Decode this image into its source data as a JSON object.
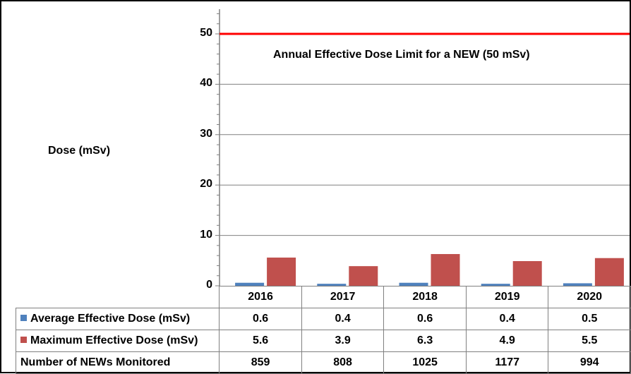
{
  "chart_data": {
    "type": "bar",
    "categories": [
      "2016",
      "2017",
      "2018",
      "2019",
      "2020"
    ],
    "series": [
      {
        "name": "Average Effective Dose (mSv)",
        "values": [
          0.6,
          0.4,
          0.6,
          0.4,
          0.5
        ],
        "color": "#4f81bd"
      },
      {
        "name": "Maximum Effective Dose (mSv)",
        "values": [
          5.6,
          3.9,
          6.3,
          4.9,
          5.5
        ],
        "color": "#c0504d"
      }
    ],
    "ylabel": "Dose (mSv)",
    "yticks": [
      "0",
      "10",
      "20",
      "30",
      "40",
      "50"
    ],
    "ylim": [
      0,
      55
    ],
    "grid": true,
    "reference_line": {
      "value": 50,
      "color": "#ff0000",
      "label": "Annual Effective Dose Limit for a NEW (50 mSv)"
    },
    "table_rows": [
      {
        "label": "Number of NEWs Monitored",
        "values": [
          "859",
          "808",
          "1025",
          "1177",
          "994"
        ]
      }
    ]
  }
}
